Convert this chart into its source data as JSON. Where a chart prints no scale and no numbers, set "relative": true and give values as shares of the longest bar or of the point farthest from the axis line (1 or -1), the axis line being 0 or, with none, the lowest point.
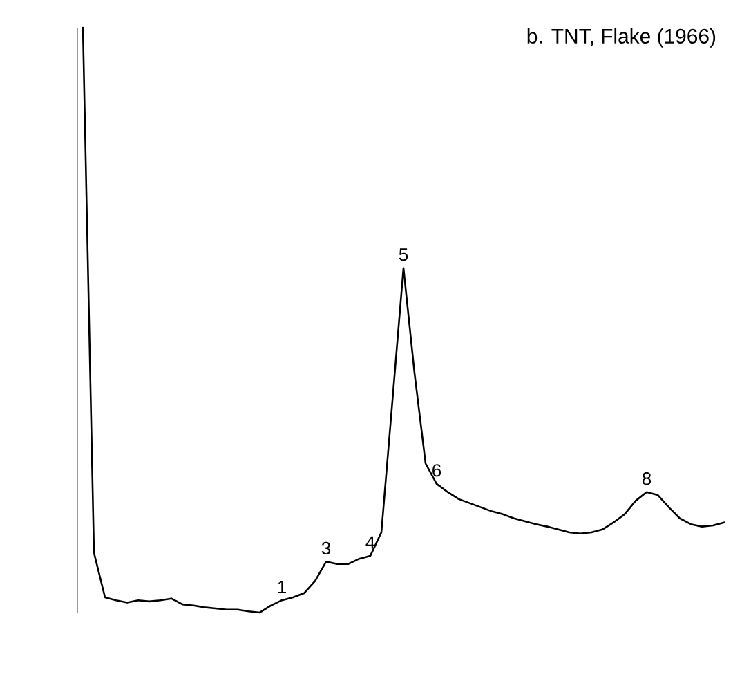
{
  "chart_data": {
    "type": "line",
    "title": "b. TNT, Flake (1966)",
    "relative": true,
    "color": "#000000",
    "categories": [
      null,
      null,
      null,
      null,
      null,
      null,
      null,
      null,
      null,
      null,
      null,
      null,
      null,
      null,
      null,
      null,
      null,
      null,
      null,
      null,
      null,
      null,
      null,
      null,
      null,
      null,
      null,
      null,
      null,
      null,
      null,
      null,
      null,
      null,
      null,
      null,
      null,
      null,
      null,
      null,
      null,
      null,
      null,
      null,
      null,
      null,
      null,
      null,
      null,
      null,
      null,
      null,
      null,
      null,
      null,
      null,
      null,
      null,
      null
    ],
    "values": [
      1.0,
      0.102,
      0.026,
      0.021,
      0.017,
      0.021,
      0.019,
      0.021,
      0.024,
      0.014,
      0.012,
      0.009,
      0.007,
      0.005,
      0.005,
      0.002,
      0,
      0.012,
      0.021,
      0.026,
      0.033,
      0.054,
      0.087,
      0.083,
      0.083,
      0.092,
      0.097,
      0.137,
      0.362,
      0.589,
      0.409,
      0.255,
      0.22,
      0.206,
      0.194,
      0.187,
      0.18,
      0.173,
      0.168,
      0.161,
      0.156,
      0.151,
      0.147,
      0.142,
      0.137,
      0.135,
      0.137,
      0.142,
      0.154,
      0.168,
      0.191,
      0.206,
      0.201,
      0.18,
      0.161,
      0.151,
      0.147,
      0.149,
      0.154
    ],
    "annotations": [
      {
        "text": "1",
        "y": 0.021
      },
      {
        "text": "3",
        "y": 0.087
      },
      {
        "text": "4",
        "y": 0.097
      },
      {
        "text": "5",
        "y": 0.589
      },
      {
        "text": "6",
        "y": 0.22
      },
      {
        "text": "8",
        "y": 0.206
      }
    ]
  }
}
